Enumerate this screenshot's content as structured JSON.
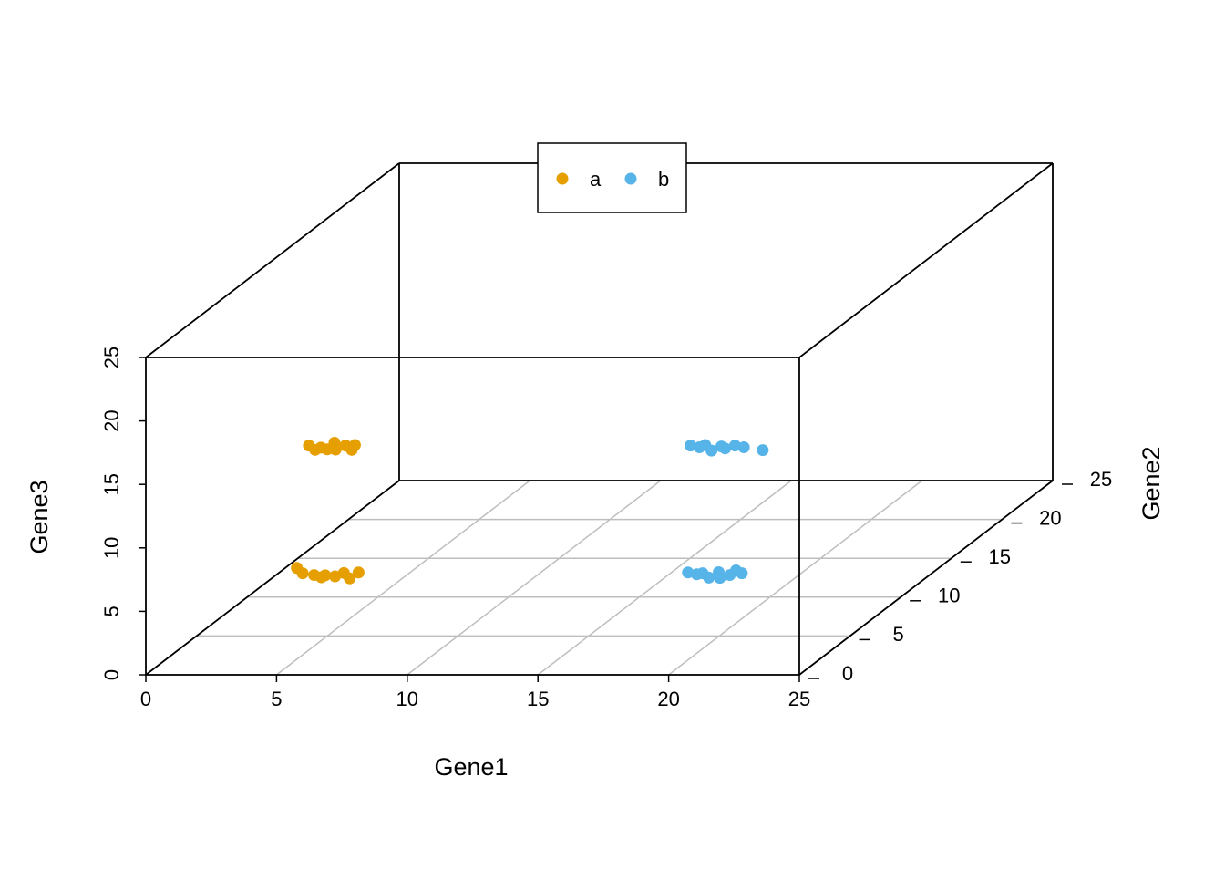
{
  "chart_data": {
    "type": "scatter3d",
    "xlabel": "Gene1",
    "ylabel": "Gene2",
    "zlabel": "Gene3",
    "xlim": [
      0,
      25
    ],
    "ylim": [
      0,
      25
    ],
    "zlim": [
      0,
      25
    ],
    "xticks": [
      0,
      5,
      10,
      15,
      20,
      25
    ],
    "yticks": [
      0,
      5,
      10,
      15,
      20,
      25
    ],
    "zticks": [
      0,
      5,
      10,
      15,
      20,
      25
    ],
    "grid": true,
    "legend_position": "top",
    "series": [
      {
        "name": "a",
        "color": "#E69F00",
        "x": [
          3.8,
          4.1,
          4.5,
          4.7,
          5.0,
          5.3,
          5.6,
          5.9,
          6.2,
          4.3,
          4.5,
          4.8,
          5.0,
          5.2,
          5.4,
          5.7,
          5.9,
          6.1
        ],
        "y": [
          5.1,
          4.9,
          5.0,
          5.2,
          4.8,
          5.0,
          5.1,
          4.9,
          5.0,
          5.0,
          5.1,
          4.9,
          5.0,
          5.2,
          4.8,
          5.0,
          5.1,
          4.9
        ],
        "z": [
          5.3,
          5.0,
          4.8,
          4.5,
          4.9,
          4.7,
          4.9,
          4.6,
          5.0,
          15.0,
          14.6,
          14.9,
          14.7,
          15.1,
          14.8,
          15.0,
          14.6,
          15.1
        ]
      },
      {
        "name": "b",
        "color": "#56B4E9",
        "x": [
          18.8,
          19.1,
          19.4,
          19.6,
          19.9,
          20.1,
          20.4,
          20.6,
          20.9,
          18.9,
          19.2,
          19.5,
          19.7,
          20.0,
          20.3,
          20.6,
          20.9,
          21.7
        ],
        "y": [
          5.0,
          5.1,
          4.9,
          5.0,
          5.2,
          4.8,
          5.0,
          5.1,
          4.9,
          5.0,
          5.1,
          4.9,
          5.0,
          5.2,
          4.8,
          5.0,
          5.1,
          4.9
        ],
        "z": [
          5.0,
          4.8,
          5.0,
          4.6,
          4.9,
          4.7,
          4.8,
          5.1,
          5.0,
          15.0,
          14.8,
          15.1,
          14.6,
          14.8,
          14.9,
          15.0,
          14.8,
          14.7
        ]
      }
    ]
  }
}
